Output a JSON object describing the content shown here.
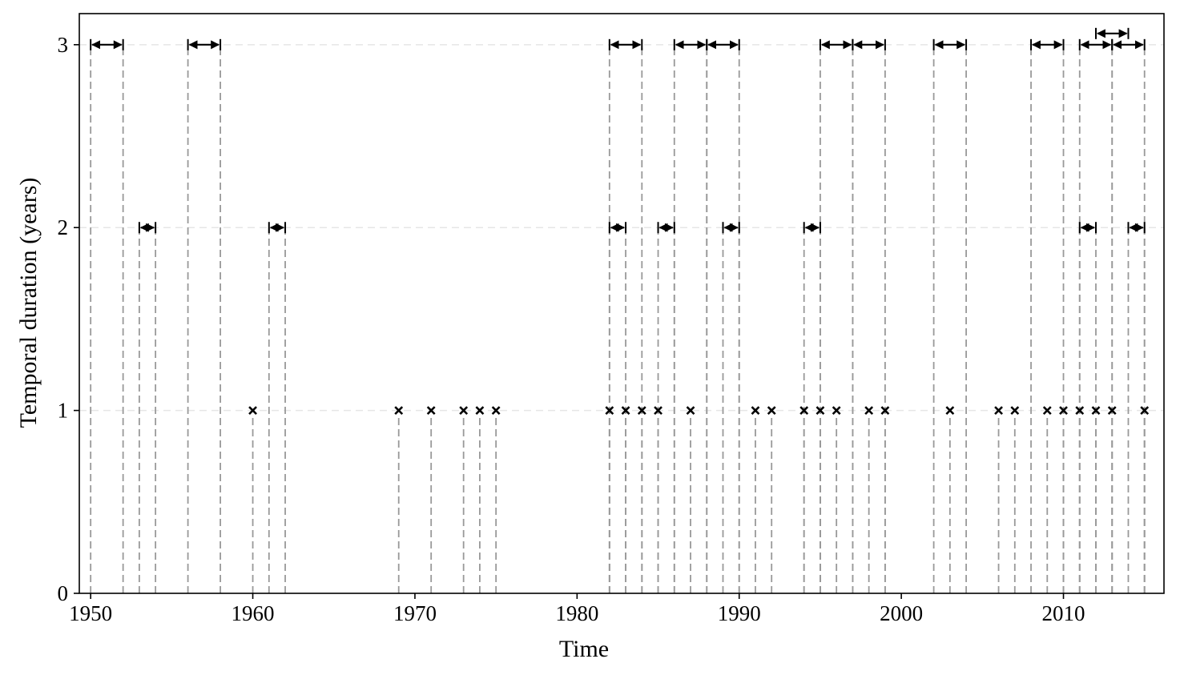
{
  "chart_data": {
    "type": "scatter",
    "title": "",
    "xlabel": "Time",
    "ylabel": "Temporal duration (years)",
    "xlim": [
      1949.3,
      2016.2
    ],
    "ylim": [
      0,
      3.17
    ],
    "xticks": [
      1950,
      1960,
      1970,
      1980,
      1990,
      2000,
      2010
    ],
    "yticks": [
      0,
      1,
      2,
      3
    ],
    "grid": "horizontal dashed light gray at y ticks",
    "one_year_events": [
      1960,
      1969,
      1971,
      1973,
      1974,
      1975,
      1982,
      1983,
      1984,
      1985,
      1987,
      1991,
      1992,
      1994,
      1995,
      1996,
      1998,
      1999,
      2003,
      2006,
      2007,
      2009,
      2010,
      2011,
      2012,
      2013,
      2015
    ],
    "two_year_events": [
      {
        "start": 1953,
        "end": 1954
      },
      {
        "start": 1961,
        "end": 1962
      },
      {
        "start": 1982,
        "end": 1983
      },
      {
        "start": 1985,
        "end": 1986
      },
      {
        "start": 1989,
        "end": 1990
      },
      {
        "start": 1994,
        "end": 1995
      },
      {
        "start": 2011,
        "end": 2012
      },
      {
        "start": 2014,
        "end": 2015
      }
    ],
    "three_year_events": [
      {
        "start": 1950,
        "end": 1952
      },
      {
        "start": 1956,
        "end": 1958
      },
      {
        "start": 1982,
        "end": 1984
      },
      {
        "start": 1986,
        "end": 1988
      },
      {
        "start": 1988,
        "end": 1990
      },
      {
        "start": 1995,
        "end": 1997
      },
      {
        "start": 1997,
        "end": 1999
      },
      {
        "start": 2002,
        "end": 2004
      },
      {
        "start": 2008,
        "end": 2010
      },
      {
        "start": 2011,
        "end": 2013
      },
      {
        "start": 2013,
        "end": 2015
      },
      {
        "start": 2012,
        "end": 2014,
        "raised": true
      }
    ],
    "colors": {
      "marker": "#000000",
      "reference_line": "#999999",
      "grid": "#e6e6e6",
      "axis": "#000000"
    }
  }
}
